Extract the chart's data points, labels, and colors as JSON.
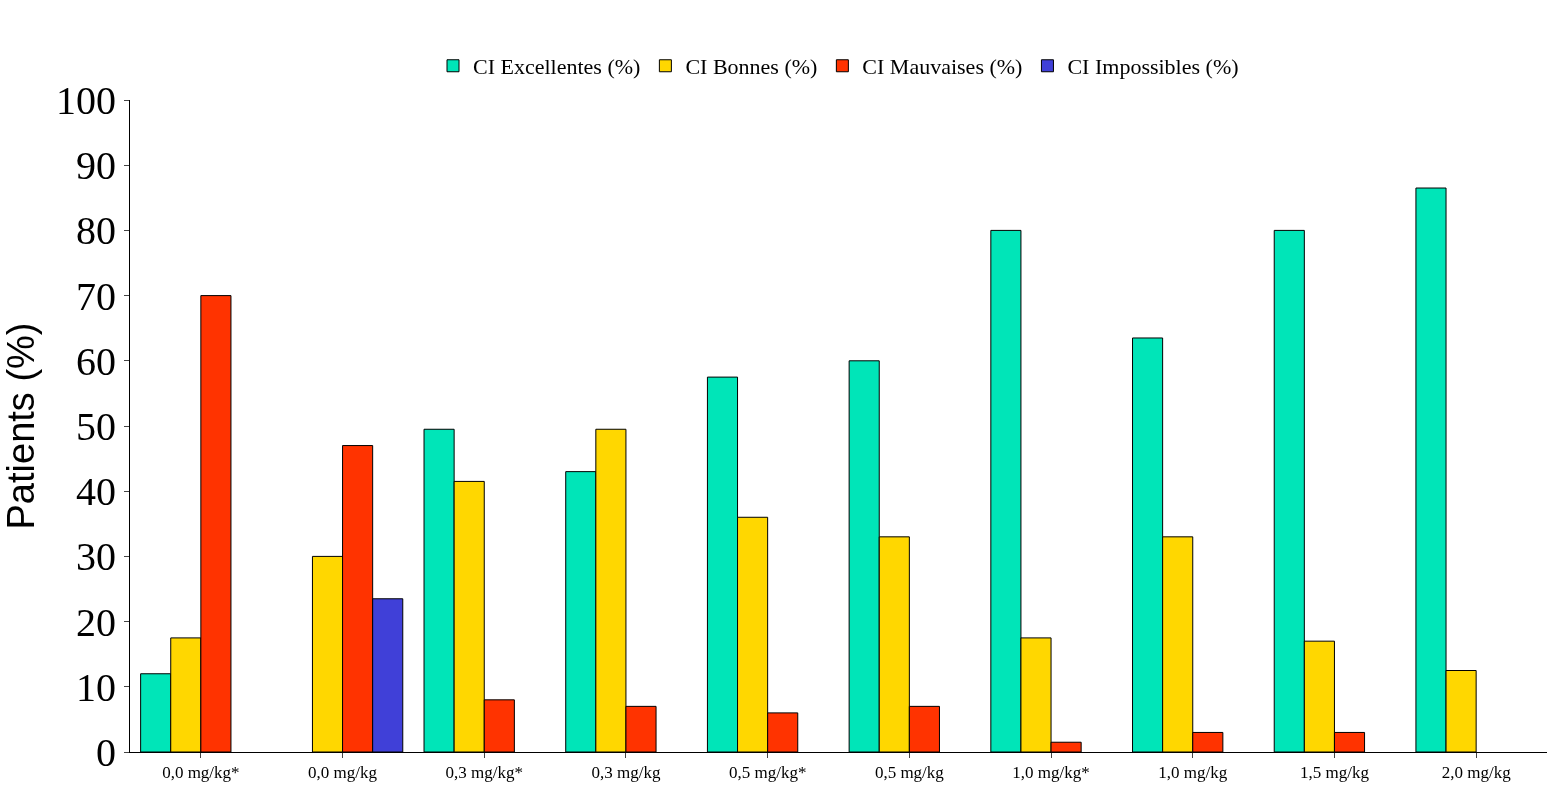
{
  "chart_data": {
    "type": "bar",
    "ylabel": "Patients (%)",
    "categories": [
      "0,0 mg/kg*",
      "0,0 mg/kg",
      "0,3 mg/kg*",
      "0,3 mg/kg",
      "0,5 mg/kg*",
      "0,5 mg/kg",
      "1,0 mg/kg*",
      "1,0 mg/kg",
      "1,5 mg/kg",
      "2,0 mg/kg"
    ],
    "series": [
      {
        "name": "CI Excellentes (%)",
        "color": "#00e5b8",
        "values": [
          12,
          null,
          49.5,
          43,
          57.5,
          60,
          80,
          63.5,
          80,
          86.5
        ]
      },
      {
        "name": "CI Bonnes (%)",
        "color": "#ffd700",
        "values": [
          17.5,
          30,
          41.5,
          49.5,
          36,
          33,
          17.5,
          33,
          17,
          12.5
        ]
      },
      {
        "name": "CI Mauvaises (%)",
        "color": "#ff3300",
        "values": [
          70,
          47,
          8,
          7,
          6,
          7,
          1.5,
          3,
          3,
          null
        ]
      },
      {
        "name": "CI Impossibles (%)",
        "color": "#4040d8",
        "values": [
          null,
          23.5,
          null,
          null,
          null,
          null,
          null,
          null,
          null,
          null
        ]
      }
    ],
    "ylim": [
      0,
      100
    ],
    "yticks": [
      0,
      10,
      20,
      30,
      40,
      50,
      60,
      70,
      80,
      90,
      100
    ],
    "grid": false,
    "legend": "top"
  }
}
